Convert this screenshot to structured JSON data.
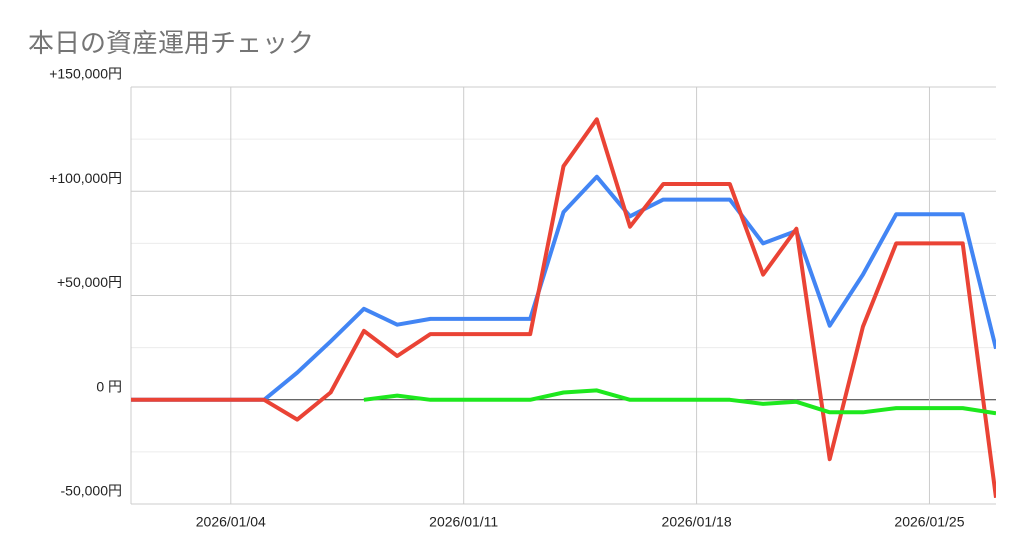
{
  "chart_data": {
    "type": "line",
    "title": "本日の資産運用チェック",
    "x": [
      "2026/01/01",
      "2026/01/02",
      "2026/01/03",
      "2026/01/04",
      "2026/01/05",
      "2026/01/06",
      "2026/01/07",
      "2026/01/08",
      "2026/01/09",
      "2026/01/10",
      "2026/01/11",
      "2026/01/12",
      "2026/01/13",
      "2026/01/14",
      "2026/01/15",
      "2026/01/16",
      "2026/01/17",
      "2026/01/18",
      "2026/01/19",
      "2026/01/20",
      "2026/01/21",
      "2026/01/22",
      "2026/01/23",
      "2026/01/24",
      "2026/01/25",
      "2026/01/26",
      "2026/01/27"
    ],
    "xticks": [
      "2026/01/04",
      "2026/01/11",
      "2026/01/18",
      "2026/01/25"
    ],
    "series": [
      {
        "color": "#4285f4",
        "values": [
          0,
          0,
          0,
          0,
          0,
          13000,
          28000,
          43600,
          36000,
          38800,
          38800,
          38800,
          38800,
          90000,
          107000,
          88000,
          96000,
          96000,
          96000,
          75000,
          81000,
          35500,
          60000,
          89000,
          89000,
          89000,
          24500
        ]
      },
      {
        "color": "#ea4335",
        "values": [
          0,
          0,
          0,
          0,
          0,
          -9500,
          3500,
          33000,
          21000,
          31500,
          31500,
          31500,
          31500,
          112000,
          134500,
          83000,
          103500,
          103500,
          103500,
          60000,
          82000,
          -28500,
          35000,
          75000,
          75000,
          75000,
          -47000
        ]
      },
      {
        "color": "#1ee81e",
        "values": [
          null,
          null,
          null,
          null,
          null,
          null,
          null,
          0,
          2000,
          0,
          0,
          0,
          0,
          3500,
          4500,
          0,
          0,
          0,
          0,
          -2000,
          -1000,
          -6000,
          -6000,
          -4000,
          -4000,
          -4000,
          -6500
        ]
      }
    ],
    "ylim": [
      -50000,
      150000
    ],
    "yticks": [
      {
        "value": -50000,
        "label": "-50,000円"
      },
      {
        "value": 0,
        "label": "0 円"
      },
      {
        "value": 50000,
        "label": "+50,000円"
      },
      {
        "value": 100000,
        "label": "+100,000円"
      },
      {
        "value": 150000,
        "label": "+150,000円"
      }
    ],
    "grid": true,
    "minor_grid": true
  }
}
